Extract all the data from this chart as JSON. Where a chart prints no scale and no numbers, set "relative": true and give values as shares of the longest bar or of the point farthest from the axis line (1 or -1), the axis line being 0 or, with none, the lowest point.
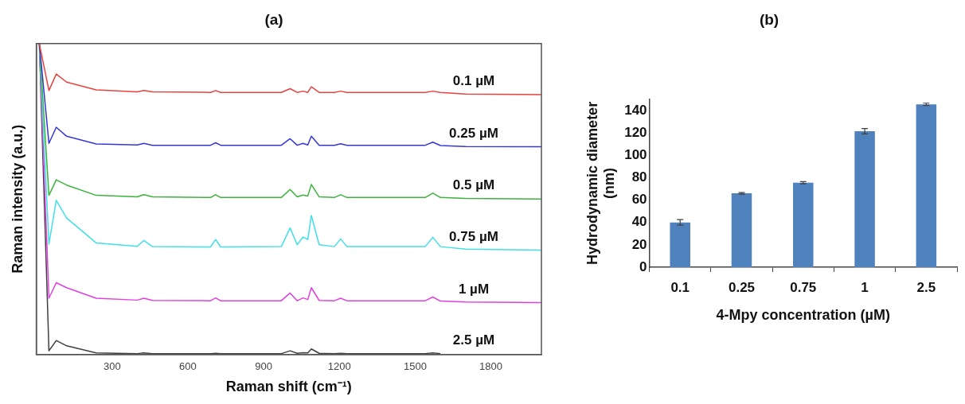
{
  "chart_data": [
    {
      "type": "line",
      "title": "(a)",
      "xlabel": "Raman shift (cm⁻¹)",
      "ylabel": "Raman intensity (a.u.)",
      "relative": true,
      "x": [
        12,
        50,
        79,
        120,
        237,
        400,
        426,
        460,
        690,
        710,
        730,
        970,
        1005,
        1033,
        1056,
        1075,
        1089,
        1120,
        1180,
        1205,
        1230,
        1540,
        1570,
        1600,
        1700,
        2000
      ],
      "xlim": [
        0,
        2000
      ],
      "xticks": [
        300,
        600,
        900,
        1200,
        1500,
        1800
      ],
      "series": [
        {
          "name": "0.1 µM",
          "color": "#e8423f",
          "values": [
            1,
            0.849,
            0.902,
            0.876,
            0.851,
            0.845,
            0.849,
            0.845,
            0.843,
            0.849,
            0.843,
            0.843,
            0.855,
            0.843,
            0.847,
            0.843,
            0.861,
            0.843,
            0.843,
            0.847,
            0.843,
            0.843,
            0.847,
            0.843,
            0.838,
            0.836
          ]
        },
        {
          "name": "0.25 µM",
          "color": "#3535d8",
          "values": [
            1,
            0.679,
            0.731,
            0.702,
            0.677,
            0.674,
            0.679,
            0.673,
            0.673,
            0.681,
            0.673,
            0.673,
            0.694,
            0.673,
            0.679,
            0.674,
            0.702,
            0.673,
            0.673,
            0.678,
            0.673,
            0.673,
            0.683,
            0.672,
            0.669,
            0.668
          ]
        },
        {
          "name": "0.5 µM",
          "color": "#3cb43c",
          "values": [
            1,
            0.512,
            0.562,
            0.545,
            0.512,
            0.507,
            0.514,
            0.507,
            0.505,
            0.514,
            0.505,
            0.505,
            0.531,
            0.507,
            0.513,
            0.51,
            0.547,
            0.507,
            0.505,
            0.514,
            0.505,
            0.505,
            0.519,
            0.505,
            0.502,
            0.5
          ]
        },
        {
          "name": "0.75 µM",
          "color": "#40e0e8",
          "values": [
            1,
            0.355,
            0.496,
            0.439,
            0.359,
            0.348,
            0.367,
            0.347,
            0.346,
            0.37,
            0.346,
            0.347,
            0.407,
            0.353,
            0.378,
            0.37,
            0.447,
            0.353,
            0.347,
            0.372,
            0.347,
            0.347,
            0.377,
            0.347,
            0.339,
            0.336
          ]
        },
        {
          "name": "1 µM",
          "color": "#e040e0",
          "values": [
            1,
            0.181,
            0.231,
            0.215,
            0.181,
            0.175,
            0.181,
            0.174,
            0.173,
            0.182,
            0.173,
            0.173,
            0.198,
            0.173,
            0.182,
            0.177,
            0.215,
            0.174,
            0.173,
            0.181,
            0.173,
            0.173,
            0.185,
            0.172,
            0.169,
            0.167
          ]
        },
        {
          "name": "2.5 µM",
          "color": "#404040",
          "values": [
            1,
            0.012,
            0.045,
            0.028,
            0.005,
            0.003,
            0.005,
            0.003,
            0.003,
            0.004,
            0.003,
            0.003,
            0.012,
            0.004,
            0.006,
            0.005,
            0.018,
            0.004,
            0.003,
            0.004,
            0.003,
            0.003,
            0.005,
            0.003,
            null,
            null
          ]
        }
      ]
    },
    {
      "type": "bar",
      "title": "(b)",
      "xlabel": "4-Mpy concentration (µM)",
      "ylabel": "Hydrodynamic diameter (nm)",
      "categories": [
        "0.1",
        "0.25",
        "0.75",
        "1",
        "2.5"
      ],
      "values": [
        40,
        66,
        75.5,
        121.5,
        145.5
      ],
      "errors": [
        2.5,
        0.7,
        1,
        2.4,
        1
      ],
      "color": "#4f81bd",
      "ylim": [
        0,
        150
      ],
      "yticks": [
        0,
        20,
        40,
        60,
        80,
        100,
        120,
        140
      ]
    }
  ]
}
